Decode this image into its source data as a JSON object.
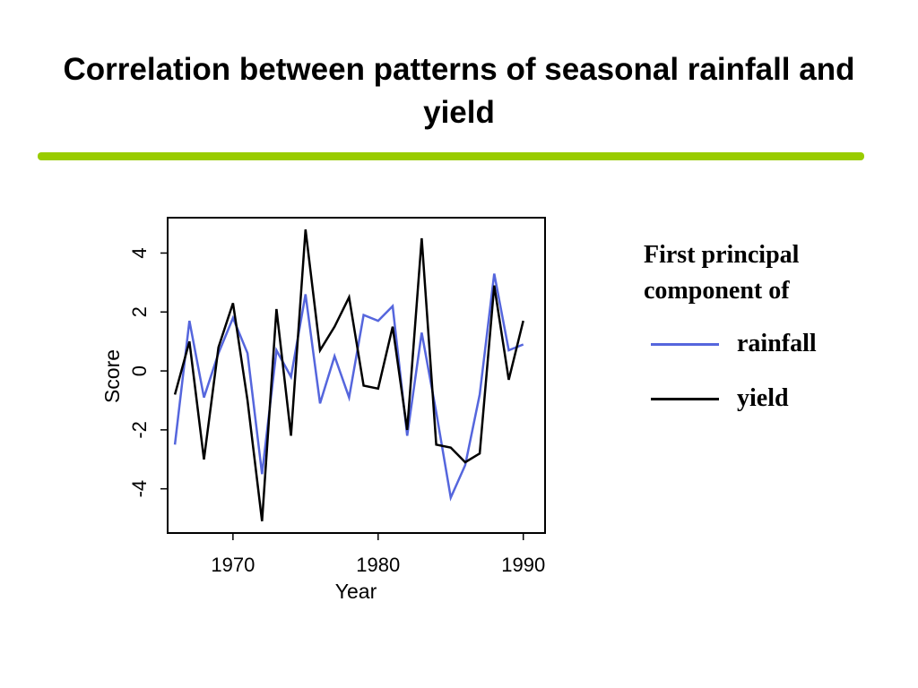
{
  "slide": {
    "title": "Correlation between patterns of seasonal rainfall and yield",
    "rule_color": "#99cc00"
  },
  "legend": {
    "heading": "First principal\ncomponent of",
    "items": [
      {
        "label": "rainfall",
        "color": "#5566dd"
      },
      {
        "label": "yield",
        "color": "#000000"
      }
    ]
  },
  "chart_data": {
    "type": "line",
    "xlabel": "Year",
    "ylabel": "Score",
    "xlim": [
      1965.5,
      1991.5
    ],
    "ylim": [
      -5.5,
      5.2
    ],
    "xticks": [
      1970,
      1980,
      1990
    ],
    "yticks": [
      -4,
      -2,
      0,
      2,
      4
    ],
    "grid": false,
    "legend_position": "right",
    "x": [
      1966,
      1967,
      1968,
      1969,
      1970,
      1971,
      1972,
      1973,
      1974,
      1975,
      1976,
      1977,
      1978,
      1979,
      1980,
      1981,
      1982,
      1983,
      1984,
      1985,
      1986,
      1987,
      1988,
      1989,
      1990
    ],
    "series": [
      {
        "name": "rainfall",
        "color": "#5566dd",
        "values": [
          -2.5,
          1.7,
          -0.9,
          0.6,
          1.8,
          0.6,
          -3.5,
          0.7,
          -0.2,
          2.6,
          -1.1,
          0.5,
          -0.9,
          1.9,
          1.7,
          2.2,
          -2.2,
          1.3,
          -1.4,
          -4.3,
          -3.2,
          -0.8,
          3.3,
          0.7,
          0.9
        ]
      },
      {
        "name": "yield",
        "color": "#000000",
        "values": [
          -0.8,
          1.0,
          -3.0,
          0.8,
          2.3,
          -1.0,
          -5.1,
          2.1,
          -2.2,
          4.8,
          0.7,
          1.5,
          2.5,
          -0.5,
          -0.6,
          1.5,
          -2.0,
          4.5,
          -2.5,
          -2.6,
          -3.1,
          -2.8,
          2.9,
          -0.3,
          1.7
        ]
      }
    ]
  }
}
